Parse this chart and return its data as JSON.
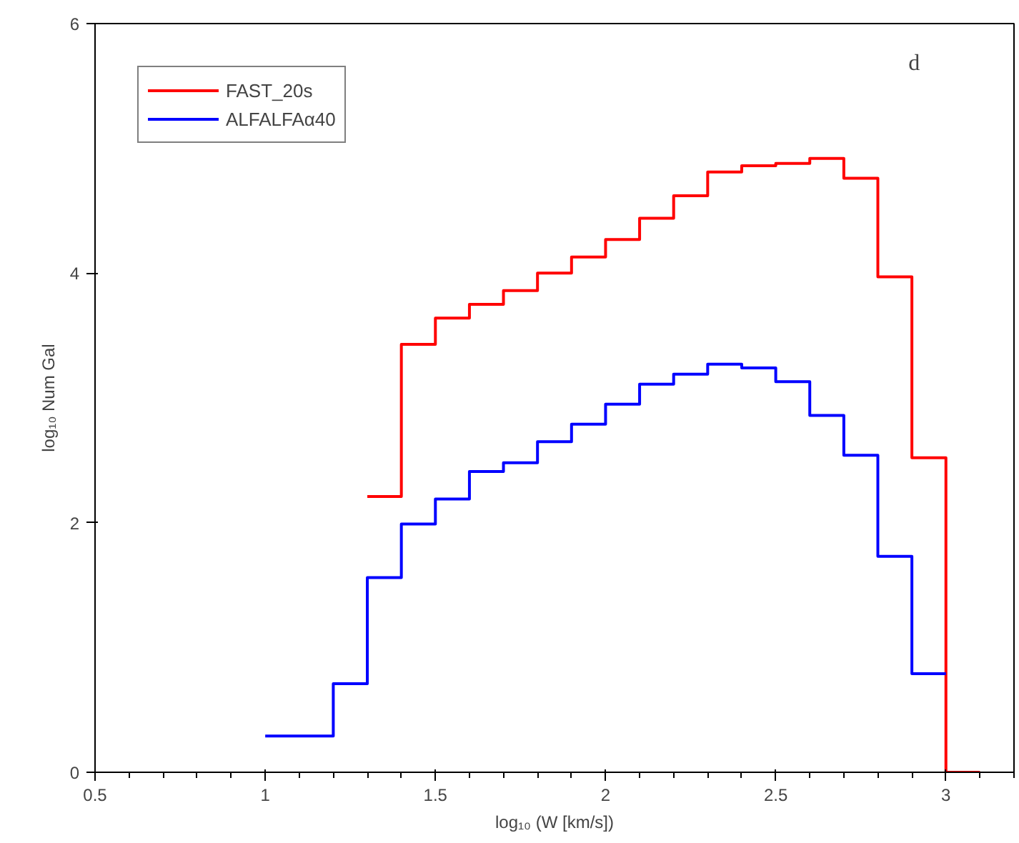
{
  "chart_data": {
    "type": "step",
    "xlabel": "log₁₀ (W [km/s])",
    "ylabel": "log₁₀ Num Gal",
    "annotations": [
      "d"
    ],
    "series": [
      {
        "name": "FAST_20s",
        "color": "#ff0000",
        "x": [
          1.3,
          1.4,
          1.5,
          1.6,
          1.7,
          1.8,
          1.9,
          2.0,
          2.1,
          2.2,
          2.3,
          2.4,
          2.5,
          2.6,
          2.7,
          2.8,
          2.9,
          3.0,
          3.1
        ],
        "values": [
          2.21,
          3.43,
          3.64,
          3.75,
          3.86,
          4.0,
          4.13,
          4.27,
          4.44,
          4.62,
          4.81,
          4.86,
          4.88,
          4.92,
          4.76,
          3.97,
          2.52,
          0,
          0
        ]
      },
      {
        "name": "ALFALFAα40",
        "color": "#0000ff",
        "x": [
          1.0,
          1.1,
          1.2,
          1.3,
          1.4,
          1.5,
          1.6,
          1.7,
          1.8,
          1.9,
          2.0,
          2.1,
          2.2,
          2.3,
          2.4,
          2.5,
          2.6,
          2.7,
          2.8,
          2.9,
          3.0
        ],
        "values": [
          0.29,
          0.29,
          0.71,
          1.56,
          1.99,
          2.19,
          2.41,
          2.48,
          2.65,
          2.79,
          2.95,
          3.11,
          3.19,
          3.27,
          3.24,
          3.13,
          2.86,
          2.54,
          1.73,
          0.79,
          0.79
        ]
      }
    ],
    "xlim": [
      0.5,
      3.2
    ],
    "ylim": [
      0,
      6
    ],
    "xticks": [
      0.5,
      1,
      1.5,
      2,
      2.5,
      3
    ],
    "yticks": [
      0,
      2,
      4,
      6
    ],
    "grid": false,
    "legend": "top left"
  }
}
